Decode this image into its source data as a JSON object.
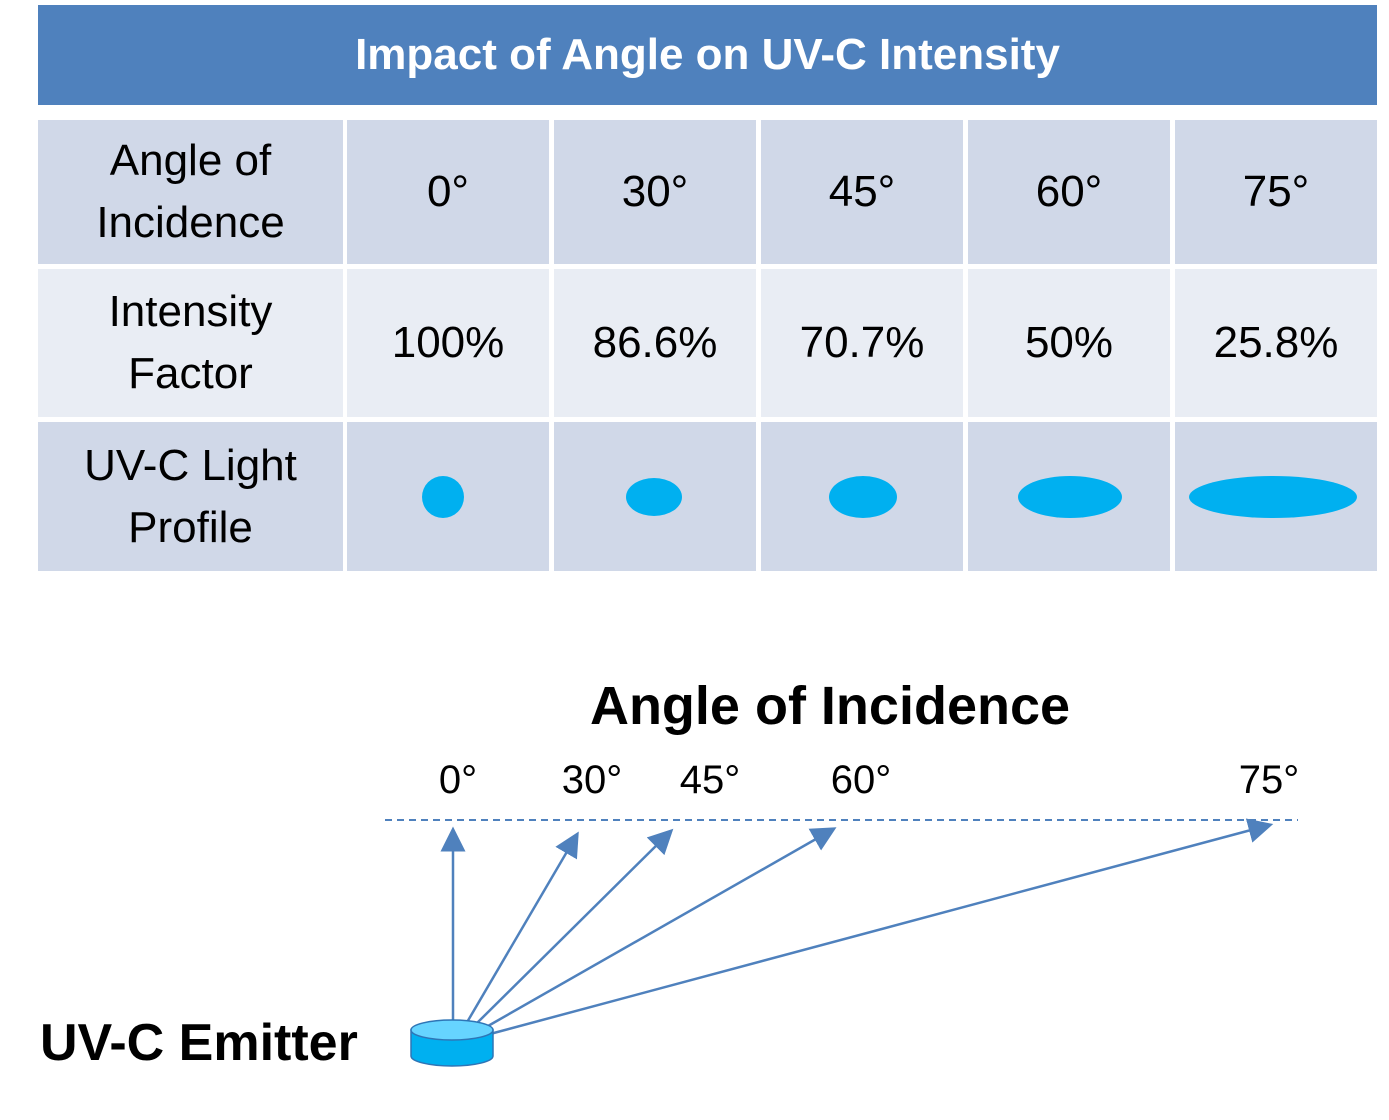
{
  "title": "Impact of Angle on UV-C Intensity",
  "table": {
    "row_headers": {
      "angle_line1": "Angle of",
      "angle_line2": "Incidence",
      "intensity_line1": "Intensity",
      "intensity_line2": "Factor",
      "profile_line1": "UV-C Light",
      "profile_line2": "Profile"
    },
    "angles": [
      "0°",
      "30°",
      "45°",
      "60°",
      "75°"
    ],
    "intensity_factors": [
      "100%",
      "86.6%",
      "70.7%",
      "50%",
      "25.8%"
    ],
    "profile_color": "#00b0f0",
    "header_color": "#4f81bd"
  },
  "diagram": {
    "axis_title": "Angle of Incidence",
    "angle_labels": [
      "0°",
      "30°",
      "45°",
      "60°",
      "75°"
    ],
    "emitter_label": "UV-C Emitter",
    "arrow_color": "#4f81bd",
    "emitter_color": "#00b0f0"
  }
}
